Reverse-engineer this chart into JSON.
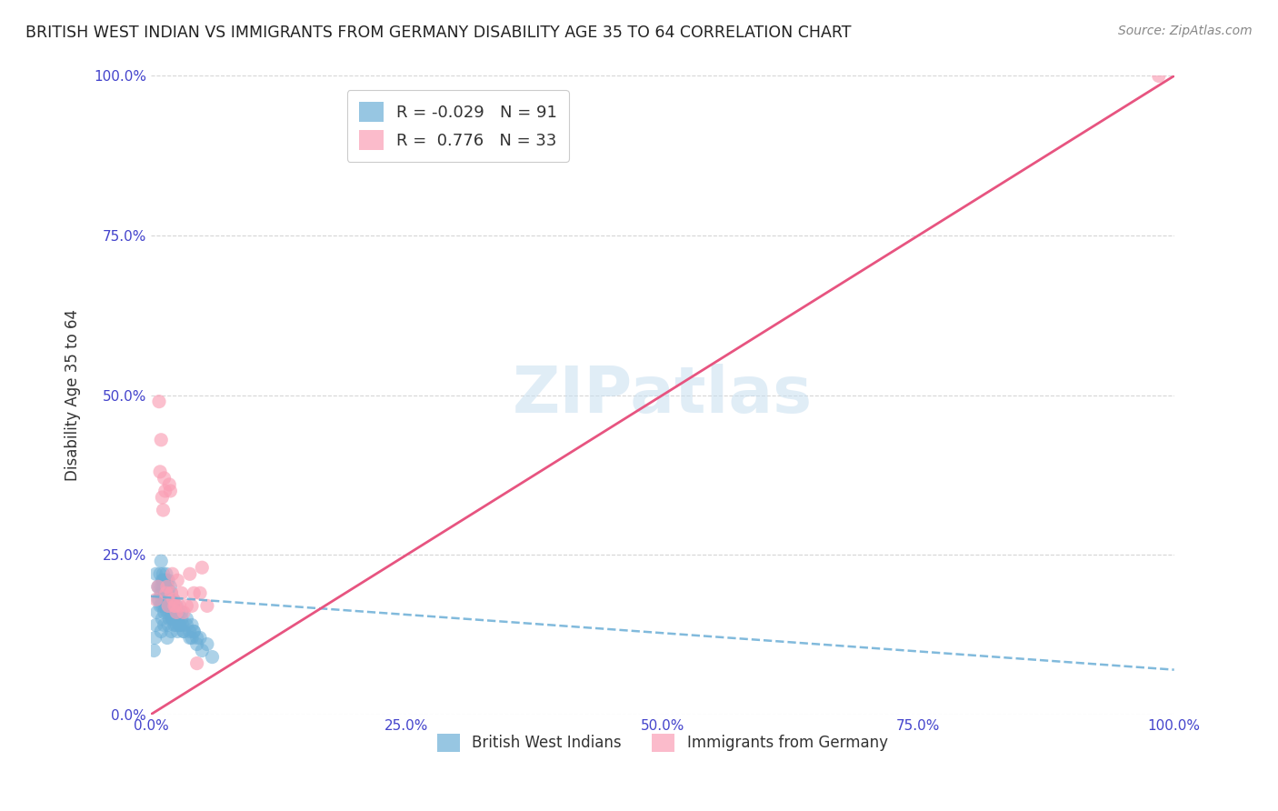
{
  "title": "BRITISH WEST INDIAN VS IMMIGRANTS FROM GERMANY DISABILITY AGE 35 TO 64 CORRELATION CHART",
  "source": "Source: ZipAtlas.com",
  "xlabel_bottom": "",
  "ylabel": "Disability Age 35 to 64",
  "xmin": 0.0,
  "xmax": 1.0,
  "ymin": 0.0,
  "ymax": 1.0,
  "legend_r1": "R = -0.029",
  "legend_n1": "N = 91",
  "legend_r2": "R =  0.776",
  "legend_n2": "N = 33",
  "color_bwi": "#6baed6",
  "color_ger": "#fa9fb5",
  "color_bwi_line": "#6baed6",
  "color_ger_line": "#e75480",
  "watermark": "ZIPatlas",
  "bwi_x": [
    0.005,
    0.007,
    0.008,
    0.009,
    0.01,
    0.01,
    0.011,
    0.011,
    0.012,
    0.012,
    0.013,
    0.013,
    0.013,
    0.014,
    0.014,
    0.015,
    0.015,
    0.015,
    0.016,
    0.016,
    0.016,
    0.017,
    0.017,
    0.017,
    0.018,
    0.018,
    0.019,
    0.019,
    0.02,
    0.02,
    0.02,
    0.021,
    0.021,
    0.022,
    0.022,
    0.023,
    0.024,
    0.025,
    0.025,
    0.026,
    0.027,
    0.028,
    0.03,
    0.031,
    0.032,
    0.035,
    0.038,
    0.04,
    0.042,
    0.045,
    0.003,
    0.004,
    0.005,
    0.006,
    0.007,
    0.008,
    0.009,
    0.01,
    0.01,
    0.011,
    0.011,
    0.012,
    0.012,
    0.013,
    0.013,
    0.014,
    0.015,
    0.015,
    0.016,
    0.017,
    0.018,
    0.019,
    0.02,
    0.021,
    0.022,
    0.023,
    0.024,
    0.025,
    0.026,
    0.028,
    0.03,
    0.032,
    0.035,
    0.038,
    0.04,
    0.042,
    0.045,
    0.048,
    0.05,
    0.055,
    0.06
  ],
  "bwi_y": [
    0.22,
    0.2,
    0.18,
    0.17,
    0.2,
    0.19,
    0.21,
    0.18,
    0.2,
    0.22,
    0.17,
    0.19,
    0.21,
    0.18,
    0.2,
    0.17,
    0.19,
    0.21,
    0.16,
    0.18,
    0.2,
    0.17,
    0.19,
    0.21,
    0.15,
    0.17,
    0.18,
    0.2,
    0.16,
    0.18,
    0.19,
    0.15,
    0.17,
    0.16,
    0.18,
    0.15,
    0.16,
    0.17,
    0.14,
    0.15,
    0.16,
    0.14,
    0.15,
    0.14,
    0.13,
    0.14,
    0.13,
    0.12,
    0.13,
    0.12,
    0.1,
    0.12,
    0.14,
    0.16,
    0.18,
    0.2,
    0.22,
    0.24,
    0.13,
    0.15,
    0.17,
    0.19,
    0.21,
    0.14,
    0.16,
    0.18,
    0.22,
    0.2,
    0.12,
    0.14,
    0.16,
    0.18,
    0.13,
    0.15,
    0.17,
    0.14,
    0.16,
    0.15,
    0.13,
    0.14,
    0.16,
    0.13,
    0.15,
    0.12,
    0.14,
    0.13,
    0.11,
    0.12,
    0.1,
    0.11,
    0.09
  ],
  "ger_x": [
    0.005,
    0.007,
    0.008,
    0.009,
    0.01,
    0.011,
    0.012,
    0.013,
    0.014,
    0.015,
    0.016,
    0.017,
    0.018,
    0.019,
    0.02,
    0.021,
    0.022,
    0.023,
    0.024,
    0.025,
    0.026,
    0.028,
    0.03,
    0.032,
    0.035,
    0.038,
    0.04,
    0.042,
    0.045,
    0.048,
    0.05,
    0.055,
    0.985
  ],
  "ger_y": [
    0.18,
    0.2,
    0.49,
    0.38,
    0.43,
    0.34,
    0.32,
    0.37,
    0.35,
    0.19,
    0.2,
    0.17,
    0.36,
    0.35,
    0.19,
    0.22,
    0.18,
    0.17,
    0.17,
    0.16,
    0.21,
    0.17,
    0.19,
    0.16,
    0.17,
    0.22,
    0.17,
    0.19,
    0.08,
    0.19,
    0.23,
    0.17,
    1.0
  ],
  "bwi_line_x": [
    0.0,
    1.0
  ],
  "bwi_line_y_start": 0.185,
  "bwi_line_y_end": 0.07,
  "ger_line_x": [
    0.0,
    1.0
  ],
  "ger_line_y_start": 0.0,
  "ger_line_y_end": 1.0,
  "gridline_color": "#cccccc",
  "axis_color": "#4444cc",
  "tick_color": "#4444cc",
  "background_color": "#ffffff"
}
